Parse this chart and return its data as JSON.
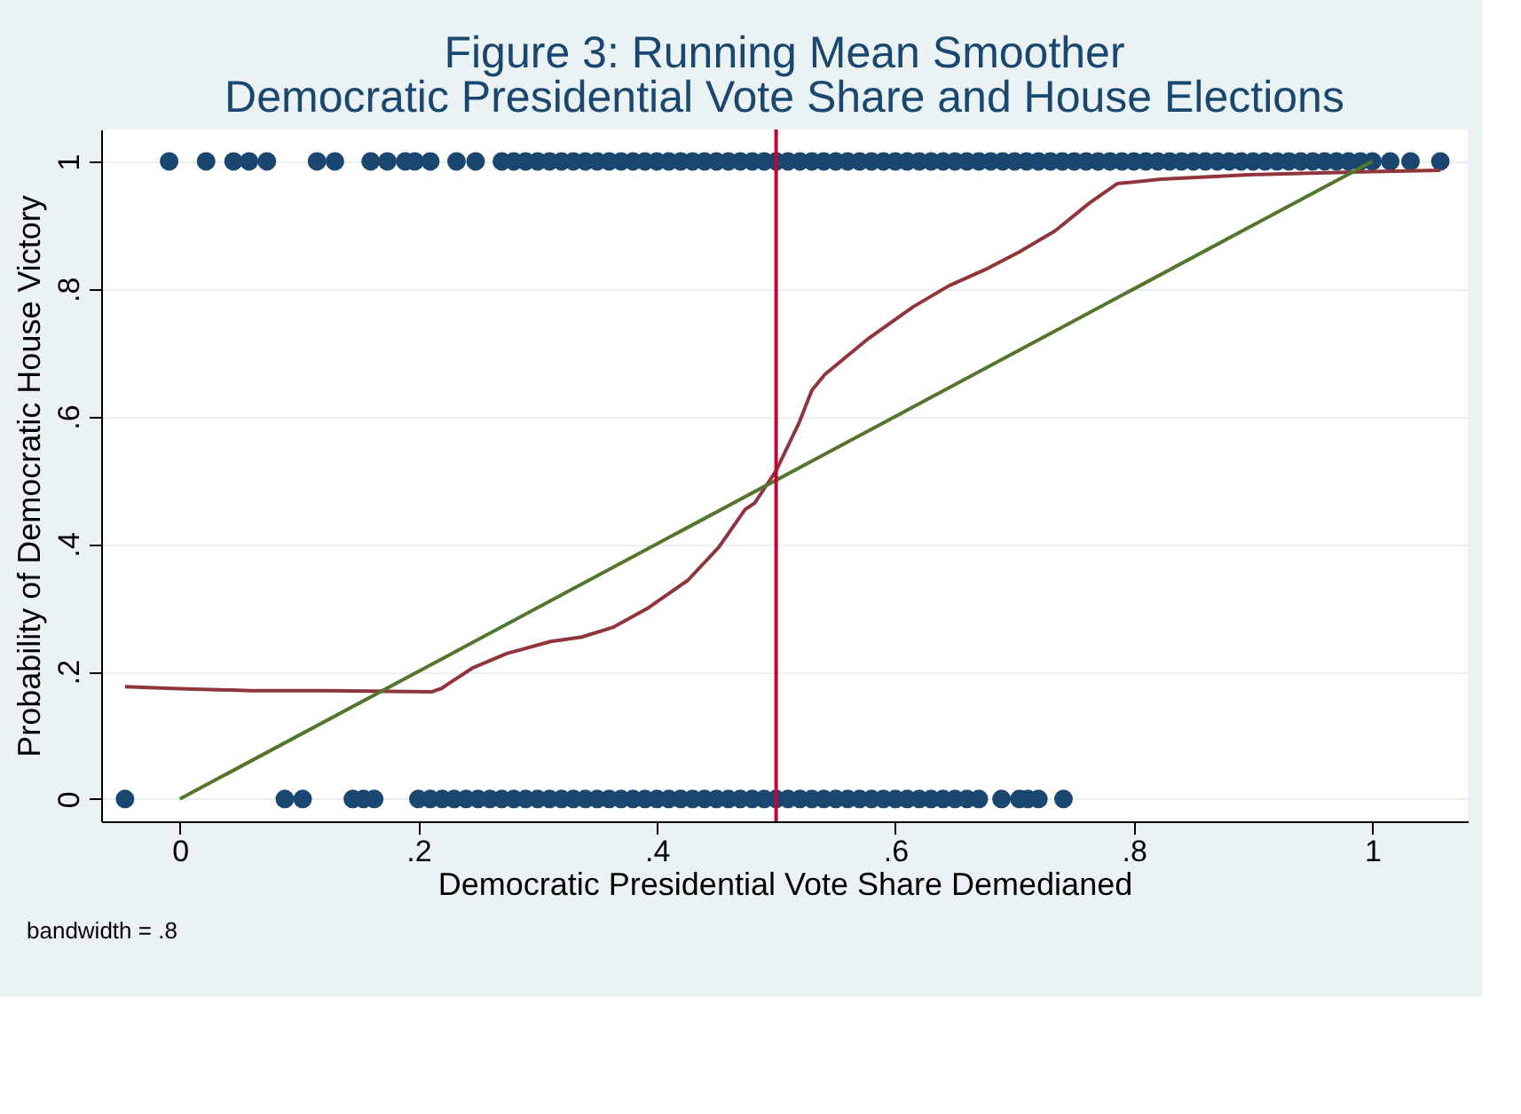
{
  "chart_data": {
    "type": "scatter",
    "title": "Figure 3: Running Mean Smoother",
    "subtitle": "Democratic Presidential Vote Share and House Elections",
    "xlabel": "Democratic Presidential Vote Share Demedianed",
    "ylabel": "Probability of Democratic House Victory",
    "annotations": [
      "bandwidth = .8"
    ],
    "xlim": [
      -0.066,
      1.08
    ],
    "ylim": [
      -0.035,
      1.05
    ],
    "xticks": [
      0,
      {
        "value": 0.2,
        "label": ".2"
      },
      {
        "value": 0.4,
        "label": ".4"
      },
      {
        "value": 0.6,
        "label": ".6"
      },
      {
        "value": 0.8,
        "label": ".8"
      },
      1
    ],
    "yticks": [
      0,
      {
        "value": 0.2,
        "label": ".2"
      },
      {
        "value": 0.4,
        "label": ".4"
      },
      {
        "value": 0.6,
        "label": ".6"
      },
      {
        "value": 0.8,
        "label": ".8"
      },
      1
    ],
    "grid": "y",
    "ref_lines": [
      {
        "axis": "x",
        "value": 0.5,
        "color": "#c10534"
      }
    ],
    "series": [
      {
        "color": "#1a476f",
        "marker": "circle",
        "x": [
          -0.009,
          0.022,
          0.045,
          0.058,
          0.073,
          0.115,
          0.13,
          0.16,
          0.174,
          0.189,
          0.197,
          0.21,
          0.232,
          0.248,
          0.27,
          0.28,
          0.29,
          0.3,
          0.31,
          0.32,
          0.33,
          0.34,
          0.35,
          0.36,
          0.37,
          0.38,
          0.39,
          0.4,
          0.41,
          0.42,
          0.43,
          0.44,
          0.45,
          0.46,
          0.47,
          0.48,
          0.49,
          0.5,
          0.51,
          0.52,
          0.53,
          0.54,
          0.55,
          0.56,
          0.57,
          0.58,
          0.59,
          0.6,
          0.61,
          0.62,
          0.63,
          0.64,
          0.65,
          0.66,
          0.67,
          0.68,
          0.69,
          0.7,
          0.71,
          0.72,
          0.73,
          0.74,
          0.75,
          0.76,
          0.77,
          0.78,
          0.79,
          0.8,
          0.81,
          0.82,
          0.83,
          0.84,
          0.85,
          0.86,
          0.87,
          0.88,
          0.89,
          0.9,
          0.91,
          0.92,
          0.93,
          0.94,
          0.95,
          0.96,
          0.97,
          0.98,
          0.99,
          1.0,
          1.015,
          1.032,
          1.057,
          -0.046,
          0.088,
          0.103,
          0.145,
          0.154,
          0.163,
          0.2,
          0.21,
          0.22,
          0.23,
          0.24,
          0.25,
          0.26,
          0.27,
          0.28,
          0.29,
          0.3,
          0.31,
          0.32,
          0.33,
          0.34,
          0.35,
          0.36,
          0.37,
          0.38,
          0.39,
          0.4,
          0.41,
          0.42,
          0.43,
          0.44,
          0.45,
          0.46,
          0.47,
          0.48,
          0.49,
          0.5,
          0.51,
          0.52,
          0.53,
          0.54,
          0.55,
          0.56,
          0.57,
          0.58,
          0.59,
          0.6,
          0.61,
          0.62,
          0.63,
          0.64,
          0.65,
          0.66,
          0.67,
          0.689,
          0.704,
          0.711,
          0.72,
          0.741
        ],
        "values": [
          1,
          1,
          1,
          1,
          1,
          1,
          1,
          1,
          1,
          1,
          1,
          1,
          1,
          1,
          1,
          1,
          1,
          1,
          1,
          1,
          1,
          1,
          1,
          1,
          1,
          1,
          1,
          1,
          1,
          1,
          1,
          1,
          1,
          1,
          1,
          1,
          1,
          1,
          1,
          1,
          1,
          1,
          1,
          1,
          1,
          1,
          1,
          1,
          1,
          1,
          1,
          1,
          1,
          1,
          1,
          1,
          1,
          1,
          1,
          1,
          1,
          1,
          1,
          1,
          1,
          1,
          1,
          1,
          1,
          1,
          1,
          1,
          1,
          1,
          1,
          1,
          1,
          1,
          1,
          1,
          1,
          1,
          1,
          1,
          1,
          1,
          1,
          1,
          1,
          1,
          1,
          0,
          0,
          0,
          0,
          0,
          0,
          0,
          0,
          0,
          0,
          0,
          0,
          0,
          0,
          0,
          0,
          0,
          0,
          0,
          0,
          0,
          0,
          0,
          0,
          0,
          0,
          0,
          0,
          0,
          0,
          0,
          0,
          0,
          0,
          0,
          0,
          0,
          0,
          0,
          0,
          0,
          0,
          0,
          0,
          0,
          0,
          0,
          0,
          0,
          0,
          0,
          0,
          0,
          0,
          0,
          0,
          0,
          0,
          0
        ]
      },
      {
        "type": "line",
        "color": "#90353b",
        "x": [
          -0.046,
          0.0,
          0.06,
          0.126,
          0.211,
          0.219,
          0.245,
          0.274,
          0.311,
          0.337,
          0.363,
          0.393,
          0.426,
          0.452,
          0.474,
          0.482,
          0.5,
          0.519,
          0.53,
          0.541,
          0.578,
          0.615,
          0.645,
          0.675,
          0.704,
          0.734,
          0.763,
          0.786,
          0.823,
          0.897,
          1.0,
          1.057
        ],
        "values": [
          0.176,
          0.173,
          0.17,
          0.17,
          0.168,
          0.173,
          0.205,
          0.228,
          0.247,
          0.254,
          0.269,
          0.3,
          0.343,
          0.395,
          0.454,
          0.464,
          0.515,
          0.589,
          0.641,
          0.666,
          0.723,
          0.772,
          0.805,
          0.83,
          0.858,
          0.891,
          0.935,
          0.965,
          0.972,
          0.979,
          0.984,
          0.986
        ]
      },
      {
        "type": "line",
        "color": "#55752f",
        "x": [
          0,
          1
        ],
        "values": [
          0,
          1
        ]
      }
    ]
  }
}
